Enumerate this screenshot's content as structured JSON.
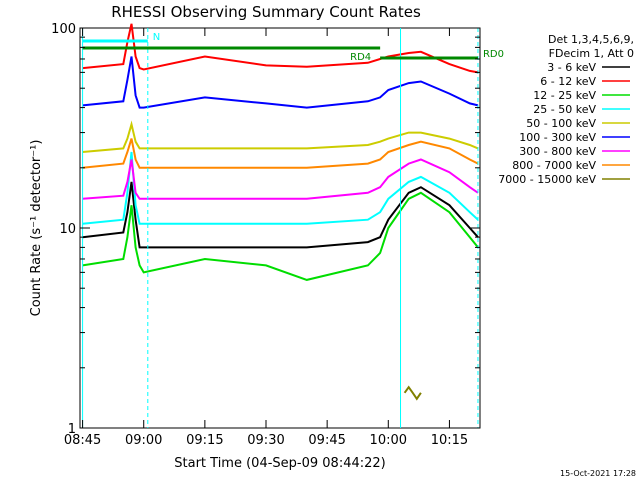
{
  "chart_data": {
    "type": "line",
    "title": "RHESSI Observing Summary Count Rates",
    "xlabel": "Start Time (04-Sep-09 08:44:22)",
    "ylabel": "Count Rate (s⁻¹ detector⁻¹)",
    "y_scale": "log",
    "ylim": [
      1,
      100
    ],
    "xlim": [
      "08:44:22",
      "10:22:30"
    ],
    "x_ticks": [
      "08:45",
      "09:00",
      "09:15",
      "09:30",
      "09:45",
      "10:00",
      "10:15"
    ],
    "y_ticks": [
      "1",
      "10",
      "100"
    ],
    "legend_header": [
      "Det 1,3,4,5,6,9,",
      "FDecim 1, Att 0"
    ],
    "legend_placement": "right",
    "series": [
      {
        "name": "3 - 6 keV",
        "color": "#000000",
        "x": [
          "08:45",
          "08:55",
          "08:56",
          "08:57",
          "08:58",
          "08:59",
          "09:00",
          "09:15",
          "09:30",
          "09:40",
          "09:55",
          "09:58",
          "10:00",
          "10:05",
          "10:08",
          "10:15",
          "10:20",
          "10:22"
        ],
        "y": [
          9,
          9.5,
          12,
          17,
          11,
          8,
          8,
          8,
          8,
          8,
          8.5,
          9,
          11,
          15,
          16,
          13,
          10,
          9
        ]
      },
      {
        "name": "6 - 12 keV",
        "color": "#ff0000",
        "x": [
          "08:45",
          "08:55",
          "08:56",
          "08:57",
          "08:58",
          "08:59",
          "09:00",
          "09:15",
          "09:30",
          "09:40",
          "09:55",
          "09:58",
          "10:00",
          "10:05",
          "10:08",
          "10:15",
          "10:20",
          "10:22"
        ],
        "y": [
          63,
          66,
          85,
          105,
          72,
          63,
          62,
          72,
          65,
          64,
          67,
          70,
          72,
          75,
          76,
          66,
          61,
          60
        ]
      },
      {
        "name": "12 - 25 keV",
        "color": "#00dd00",
        "x": [
          "08:45",
          "08:55",
          "08:56",
          "08:57",
          "08:58",
          "08:59",
          "09:00",
          "09:15",
          "09:30",
          "09:40",
          "09:55",
          "09:58",
          "10:00",
          "10:05",
          "10:08",
          "10:15",
          "10:20",
          "10:22"
        ],
        "y": [
          6.5,
          7,
          9,
          13,
          8,
          6.5,
          6,
          7,
          6.5,
          5.5,
          6.5,
          7.5,
          10,
          14,
          15,
          12,
          9,
          8
        ]
      },
      {
        "name": "25 - 50 keV",
        "color": "#00ffff",
        "x": [
          "08:45",
          "08:55",
          "08:56",
          "08:57",
          "08:58",
          "08:59",
          "09:00",
          "09:15",
          "09:30",
          "09:40",
          "09:55",
          "09:58",
          "10:00",
          "10:05",
          "10:08",
          "10:15",
          "10:20",
          "10:22"
        ],
        "y": [
          10.5,
          11,
          15,
          24,
          13,
          10.5,
          10.5,
          10.5,
          10.5,
          10.5,
          11,
          12,
          14,
          17,
          18,
          15,
          12,
          11
        ]
      },
      {
        "name": "50 - 100 keV",
        "color": "#cccc00",
        "x": [
          "08:45",
          "08:55",
          "08:56",
          "08:57",
          "08:58",
          "08:59",
          "09:00",
          "09:15",
          "09:30",
          "09:40",
          "09:55",
          "09:58",
          "10:00",
          "10:05",
          "10:08",
          "10:15",
          "10:20",
          "10:22"
        ],
        "y": [
          24,
          25,
          28,
          33,
          27,
          25,
          25,
          25,
          25,
          25,
          26,
          27,
          28,
          30,
          30,
          28,
          26,
          25
        ]
      },
      {
        "name": "100 - 300 keV",
        "color": "#0000ff",
        "x": [
          "08:45",
          "08:55",
          "08:56",
          "08:57",
          "08:58",
          "08:59",
          "09:00",
          "09:15",
          "09:30",
          "09:40",
          "09:55",
          "09:58",
          "10:00",
          "10:05",
          "10:08",
          "10:15",
          "10:20",
          "10:22"
        ],
        "y": [
          41,
          43,
          55,
          72,
          46,
          40,
          40,
          45,
          42,
          40,
          43,
          45,
          49,
          53,
          54,
          47,
          42,
          41
        ]
      },
      {
        "name": "300 - 800 keV",
        "color": "#ff00ff",
        "x": [
          "08:45",
          "08:55",
          "08:56",
          "08:57",
          "08:58",
          "08:59",
          "09:00",
          "09:15",
          "09:30",
          "09:40",
          "09:55",
          "09:58",
          "10:00",
          "10:05",
          "10:08",
          "10:15",
          "10:20",
          "10:22"
        ],
        "y": [
          14,
          14.5,
          17,
          22,
          15,
          14,
          14,
          14,
          14,
          14,
          15,
          16,
          18,
          21,
          22,
          19,
          16,
          15
        ]
      },
      {
        "name": "800 - 7000 keV",
        "color": "#ff8800",
        "x": [
          "08:45",
          "08:55",
          "08:56",
          "08:57",
          "08:58",
          "08:59",
          "09:00",
          "09:15",
          "09:30",
          "09:40",
          "09:55",
          "09:58",
          "10:00",
          "10:05",
          "10:08",
          "10:15",
          "10:20",
          "10:22"
        ],
        "y": [
          20,
          21,
          24,
          28,
          22,
          20,
          20,
          20,
          20,
          20,
          21,
          22,
          24,
          26,
          27,
          25,
          22,
          21
        ]
      },
      {
        "name": "7000 - 15000 keV",
        "color": "#808000",
        "x": [
          "10:04",
          "10:05",
          "10:06",
          "10:07",
          "10:08"
        ],
        "y": [
          1.5,
          1.6,
          1.5,
          1.4,
          1.5
        ]
      }
    ],
    "markers": [
      {
        "label": "N",
        "color": "#00ffff",
        "x_start": "08:45",
        "x_end": "09:01"
      },
      {
        "label": "RD4",
        "color": "#008800",
        "x_start": "08:45",
        "x_end": "09:58"
      },
      {
        "label": "RD0",
        "color": "#008800",
        "x_start": "09:58",
        "x_end": "10:22"
      }
    ],
    "vertical_lines": [
      {
        "x": "08:45",
        "color": "#00ffff",
        "style": "solid"
      },
      {
        "x": "09:01",
        "color": "#00ffff",
        "style": "dashed"
      },
      {
        "x": "10:03",
        "color": "#00ffff",
        "style": "solid"
      },
      {
        "x": "10:22",
        "color": "#00ffff",
        "style": "dashed"
      }
    ],
    "grid": false
  },
  "footer_date": "15-Oct-2021 17:28"
}
